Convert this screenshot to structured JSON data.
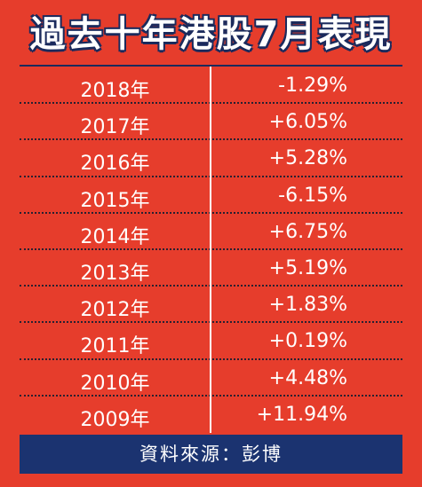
{
  "header": {
    "title": "過去十年港股7月表現"
  },
  "table": {
    "rows": [
      [
        "2018年",
        "-1.29%"
      ],
      [
        "2017年",
        "+6.05%"
      ],
      [
        "2016年",
        "+5.28%"
      ],
      [
        "2015年",
        "-6.15%"
      ],
      [
        "2014年",
        "+6.75%"
      ],
      [
        "2013年",
        "+5.19%"
      ],
      [
        "2012年",
        "+1.83%"
      ],
      [
        "2011年",
        "+0.19%"
      ],
      [
        "2010年",
        "+4.48%"
      ],
      [
        "2009年",
        "+11.94%"
      ]
    ]
  },
  "footer": {
    "source": "資料來源：彭博"
  }
}
